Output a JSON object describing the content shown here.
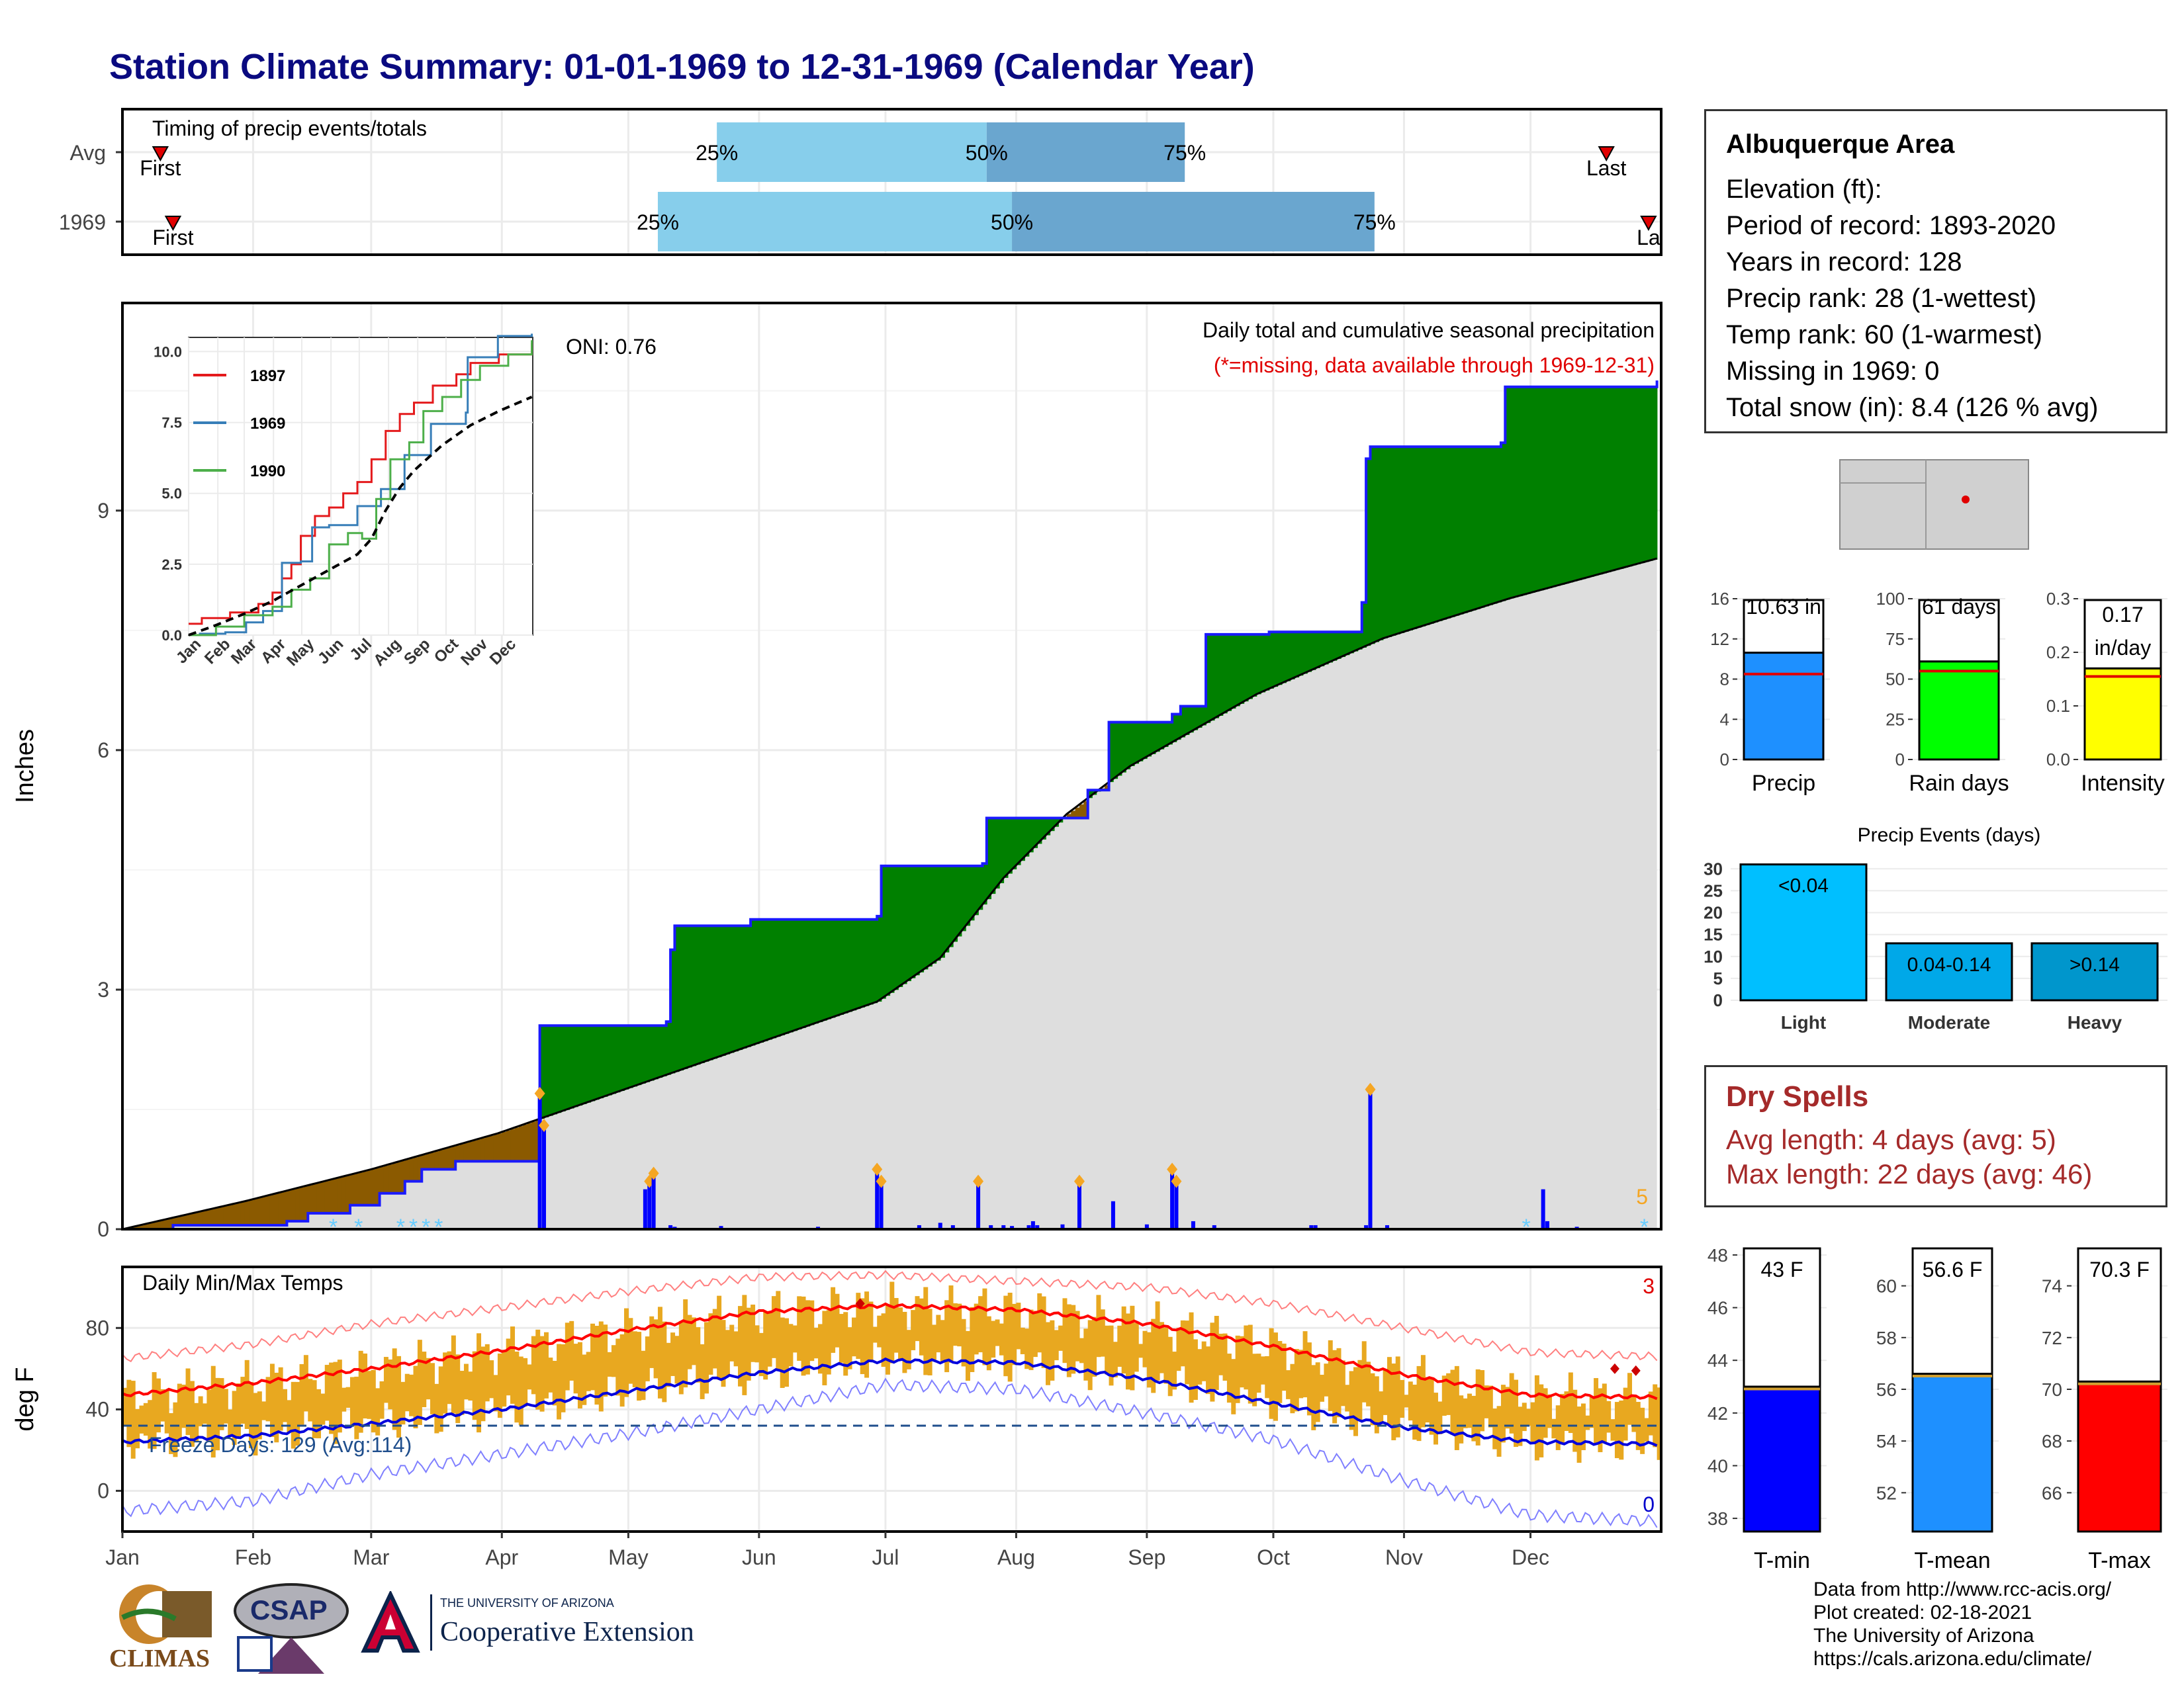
{
  "page": {
    "title": "Station Climate Summary: 01-01-1969 to 12-31-1969 (Calendar Year)"
  },
  "colors": {
    "title": "#0a0a80",
    "precip_bar_light": "#87ceeb",
    "precip_bar_dark": "#6aa6cf",
    "surplus_green": "#008000",
    "deficit_brown": "#8b5a00",
    "cumulative_line": "#1a1aff",
    "avg_fill": "#dedede",
    "temp_bars": "#e8a820",
    "tmax_avg": "#ff0000",
    "tmin_avg": "#0000dd",
    "dry_spells": "#a52a2a"
  },
  "timing_panel": {
    "label": "Timing of precip events/totals",
    "rows": [
      {
        "name": "Avg",
        "first_label": "First",
        "last_label": "Last",
        "p25_label": "25%",
        "p50_label": "50%",
        "p75_label": "75%",
        "first_doy": 10,
        "p25_doy": 142,
        "p50_doy": 206,
        "p75_doy": 253,
        "last_doy": 353
      },
      {
        "name": "1969",
        "first_label": "First",
        "last_label": "La",
        "p25_label": "25%",
        "p50_label": "50%",
        "p75_label": "75%",
        "first_doy": 13,
        "p25_doy": 128,
        "p50_doy": 212,
        "p75_doy": 298,
        "last_doy": 363
      }
    ]
  },
  "precip_panel": {
    "ylabel": "Inches",
    "title": "Daily total and cumulative seasonal precipitation",
    "subtitle": "(*=missing, data available through 1969-12-31)",
    "oni": "ONI: 0.76",
    "corner_count": "5"
  },
  "inset": {
    "legend": [
      "1897",
      "1969",
      "1990"
    ],
    "months": [
      "Jan",
      "Feb",
      "Mar",
      "Apr",
      "May",
      "Jun",
      "Jul",
      "Aug",
      "Sep",
      "Oct",
      "Nov",
      "Dec"
    ],
    "yticks": [
      "0.0",
      "2.5",
      "5.0",
      "7.5",
      "10.0"
    ]
  },
  "temp_panel": {
    "ylabel": "deg F",
    "title": "Daily Min/Max Temps",
    "freeze_label": "Freeze Days: 129 (Avg:114)",
    "corner_hot": "3",
    "corner_cold": "0"
  },
  "x_months": [
    "Jan",
    "Feb",
    "Mar",
    "Apr",
    "May",
    "Jun",
    "Jul",
    "Aug",
    "Sep",
    "Oct",
    "Nov",
    "Dec"
  ],
  "info": {
    "area": "Albuquerque Area",
    "lines": [
      "Elevation (ft):",
      "Period of record: 1893-2020",
      "Years in record: 128",
      "Precip rank: 28 (1-wettest)",
      "Temp rank: 60 (1-warmest)",
      "Missing in 1969: 0",
      "Total snow (in): 8.4 (126 % avg)"
    ]
  },
  "mini_bars": [
    {
      "label": "Precip",
      "value_label": "10.63 in",
      "value": 10.63,
      "avg": 8.5,
      "max": 16,
      "ticks": [
        "0",
        "4",
        "8",
        "12",
        "16"
      ],
      "color": "#1e90ff"
    },
    {
      "label": "Rain days",
      "value_label": "61 days",
      "value": 61,
      "avg": 55,
      "max": 100,
      "ticks": [
        "0",
        "25",
        "50",
        "75",
        "100"
      ],
      "color": "#00ff00"
    },
    {
      "label": "Intensity",
      "value_label": "0.17 in/day",
      "value": 0.17,
      "avg": 0.155,
      "max": 0.3,
      "ticks": [
        "0.0",
        "0.1",
        "0.2",
        "0.3"
      ],
      "color": "#ffff00"
    }
  ],
  "events": {
    "title": "Precip Events (days)",
    "bars": [
      {
        "label": "Light",
        "value_label": "<0.04",
        "value": 31,
        "color": "#00bfff"
      },
      {
        "label": "Moderate",
        "value_label": "0.04-0.14",
        "value": 13,
        "color": "#00a8e8"
      },
      {
        "label": "Heavy",
        "value_label": ">0.14",
        "value": 13,
        "color": "#0096cc"
      }
    ],
    "yticks": [
      "0",
      "5",
      "10",
      "15",
      "20",
      "25",
      "30"
    ]
  },
  "dry_spells": {
    "title": "Dry Spells",
    "avg_length": "Avg length: 4 days (avg: 5)",
    "max_length": "Max length: 22 days (avg: 46)"
  },
  "temp_bars": [
    {
      "label": "T-min",
      "value_label": "43 F",
      "value": 43,
      "min": 37.5,
      "max": 48.3,
      "ticks": [
        "38",
        "40",
        "42",
        "44",
        "46",
        "48"
      ],
      "color": "#0000ff"
    },
    {
      "label": "T-mean",
      "value_label": "56.6 F",
      "value": 56.6,
      "min": 50.5,
      "max": 61.5,
      "ticks": [
        "52",
        "54",
        "56",
        "58",
        "60"
      ],
      "color": "#1e90ff"
    },
    {
      "label": "T-max",
      "value_label": "70.3 F",
      "value": 70.3,
      "min": 64.5,
      "max": 75.5,
      "ticks": [
        "66",
        "68",
        "70",
        "72",
        "74"
      ],
      "color": "#ff0000"
    }
  ],
  "footer": [
    "Data from http://www.rcc-acis.org/",
    "Plot created: 02-18-2021",
    "The University of Arizona",
    "https://cals.arizona.edu/climate/"
  ],
  "logos": {
    "climas": "CLIMAS",
    "csap": "CSAP",
    "ua_small": "THE UNIVERSITY OF ARIZONA",
    "ua_big": "Cooperative Extension"
  },
  "chart_data": [
    {
      "type": "area",
      "title": "Daily total and cumulative seasonal precipitation",
      "ylabel": "Inches",
      "ylim": [
        0,
        11.6
      ],
      "x_unit": "day of year",
      "series": [
        {
          "name": "1969 cumulative",
          "x": [
            1,
            13,
            40,
            45,
            55,
            62,
            68,
            72,
            80,
            98,
            100,
            130,
            131,
            132,
            150,
            180,
            181,
            205,
            206,
            230,
            235,
            250,
            252,
            258,
            273,
            295,
            296,
            297,
            328,
            329,
            365
          ],
          "y": [
            0,
            0.05,
            0.1,
            0.2,
            0.3,
            0.45,
            0.6,
            0.75,
            0.85,
            0.85,
            2.55,
            2.6,
            3.5,
            3.8,
            3.88,
            3.92,
            4.55,
            4.58,
            5.15,
            5.5,
            6.35,
            6.45,
            6.55,
            7.45,
            7.48,
            7.85,
            9.65,
            9.8,
            9.85,
            10.55,
            10.63
          ]
        },
        {
          "name": "average cumulative",
          "x": [
            1,
            30,
            60,
            90,
            120,
            150,
            180,
            195,
            210,
            225,
            240,
            270,
            300,
            330,
            365
          ],
          "y": [
            0,
            0.35,
            0.75,
            1.2,
            1.75,
            2.3,
            2.85,
            3.4,
            4.4,
            5.2,
            5.8,
            6.7,
            7.4,
            7.9,
            8.4
          ]
        }
      ],
      "daily_bars": {
        "x": [
          100,
          101,
          125,
          126,
          127,
          131,
          132,
          143,
          166,
          180,
          181,
          190,
          195,
          198,
          204,
          207,
          210,
          212,
          216,
          217,
          218,
          224,
          228,
          236,
          244,
          250,
          251,
          255,
          260,
          283,
          284,
          296,
          297,
          301,
          338,
          339,
          346
        ],
        "y": [
          1.7,
          1.3,
          0.5,
          0.6,
          0.7,
          0.05,
          0.03,
          0.04,
          0.03,
          0.75,
          0.6,
          0.05,
          0.08,
          0.05,
          0.6,
          0.05,
          0.05,
          0.04,
          0.05,
          0.1,
          0.05,
          0.06,
          0.6,
          0.35,
          0.06,
          0.75,
          0.6,
          0.1,
          0.05,
          0.05,
          0.05,
          0.05,
          1.75,
          0.05,
          0.5,
          0.1,
          0.03
        ]
      }
    },
    {
      "type": "line",
      "title": "",
      "ylim": [
        0,
        10.5
      ],
      "xlabel": "",
      "ylabel": "",
      "x_categories": [
        "Jan",
        "Feb",
        "Mar",
        "Apr",
        "May",
        "Jun",
        "Jul",
        "Aug",
        "Sep",
        "Oct",
        "Nov",
        "Dec"
      ],
      "series": [
        {
          "name": "1897",
          "x": [
            1,
            15,
            45,
            75,
            90,
            100,
            110,
            120,
            135,
            150,
            165,
            180,
            195,
            210,
            225,
            240,
            260,
            285,
            300,
            330,
            365
          ],
          "y": [
            0.4,
            0.6,
            0.8,
            1.1,
            1.5,
            2.0,
            2.5,
            3.5,
            4.2,
            4.5,
            5.0,
            5.4,
            6.2,
            7.2,
            7.8,
            8.2,
            8.8,
            9.2,
            9.6,
            9.9,
            10.3
          ]
        },
        {
          "name": "1969",
          "x": [
            1,
            13,
            40,
            62,
            80,
            100,
            120,
            132,
            150,
            180,
            205,
            230,
            258,
            295,
            297,
            329,
            365
          ],
          "y": [
            0,
            0.05,
            0.1,
            0.45,
            0.85,
            2.55,
            2.6,
            3.8,
            3.88,
            4.55,
            5.15,
            6.35,
            7.45,
            7.85,
            9.8,
            10.55,
            10.63
          ]
        },
        {
          "name": "1990",
          "x": [
            1,
            30,
            60,
            90,
            110,
            130,
            150,
            170,
            185,
            200,
            215,
            235,
            250,
            270,
            290,
            310,
            340,
            365
          ],
          "y": [
            0,
            0.3,
            0.7,
            1.0,
            1.6,
            2.0,
            3.2,
            3.6,
            3.4,
            4.8,
            6.2,
            6.8,
            7.9,
            8.4,
            9.0,
            9.5,
            9.9,
            10.4
          ]
        },
        {
          "name": "average",
          "x": [
            1,
            30,
            60,
            90,
            120,
            150,
            180,
            195,
            210,
            225,
            240,
            270,
            300,
            330,
            365
          ],
          "y": [
            0,
            0.35,
            0.75,
            1.2,
            1.75,
            2.3,
            2.85,
            3.4,
            4.4,
            5.2,
            5.8,
            6.7,
            7.4,
            7.9,
            8.4
          ]
        }
      ]
    },
    {
      "type": "bar",
      "title": "Daily Min/Max Temps",
      "ylabel": "deg F",
      "ylim": [
        -20,
        110
      ],
      "normals": {
        "x": [
          1,
          32,
          60,
          91,
          121,
          152,
          182,
          213,
          244,
          274,
          305,
          335,
          365
        ],
        "tmax_avg": [
          47,
          53,
          60,
          69,
          79,
          88,
          91,
          89,
          82,
          71,
          57,
          47,
          46
        ],
        "tmin_avg": [
          24,
          27,
          33,
          40,
          49,
          58,
          64,
          63,
          55,
          43,
          31,
          24,
          23
        ],
        "tmax_record": [
          65,
          72,
          82,
          90,
          98,
          105,
          106,
          103,
          100,
          92,
          80,
          68,
          66
        ],
        "tmin_record": [
          -10,
          -5,
          8,
          18,
          28,
          40,
          52,
          50,
          38,
          25,
          5,
          -12,
          -15
        ]
      },
      "freeze_threshold": 32
    },
    {
      "type": "bar",
      "title": "",
      "categories": [
        "Precip",
        "Rain days",
        "Intensity"
      ],
      "values": [
        10.63,
        61,
        0.17
      ]
    },
    {
      "type": "bar",
      "title": "Precip Events (days)",
      "categories": [
        "Light",
        "Moderate",
        "Heavy"
      ],
      "values": [
        31,
        13,
        13
      ],
      "ylim": [
        0,
        32
      ]
    },
    {
      "type": "bar",
      "title": "",
      "categories": [
        "T-min",
        "T-mean",
        "T-max"
      ],
      "values": [
        43,
        56.6,
        70.3
      ]
    }
  ]
}
